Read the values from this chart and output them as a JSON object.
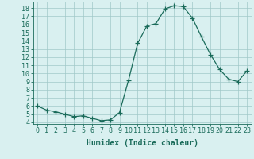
{
  "x": [
    0,
    1,
    2,
    3,
    4,
    5,
    6,
    7,
    8,
    9,
    10,
    11,
    12,
    13,
    14,
    15,
    16,
    17,
    18,
    19,
    20,
    21,
    22,
    23
  ],
  "y": [
    6.0,
    5.5,
    5.3,
    5.0,
    4.7,
    4.8,
    4.5,
    4.2,
    4.3,
    5.2,
    9.2,
    13.7,
    15.8,
    16.1,
    17.9,
    18.3,
    18.2,
    16.8,
    14.5,
    12.3,
    10.5,
    9.3,
    9.0,
    10.3
  ],
  "line_color": "#1a6b5a",
  "marker": "+",
  "marker_size": 4,
  "background_color": "#d9f0f0",
  "grid_color": "#a0c8c8",
  "xlabel": "Humidex (Indice chaleur)",
  "xlim": [
    -0.5,
    23.5
  ],
  "ylim": [
    3.8,
    18.8
  ],
  "yticks": [
    4,
    5,
    6,
    7,
    8,
    9,
    10,
    11,
    12,
    13,
    14,
    15,
    16,
    17,
    18
  ],
  "xticks": [
    0,
    1,
    2,
    3,
    4,
    5,
    6,
    7,
    8,
    9,
    10,
    11,
    12,
    13,
    14,
    15,
    16,
    17,
    18,
    19,
    20,
    21,
    22,
    23
  ],
  "tick_color": "#1a6b5a",
  "label_fontsize": 7,
  "tick_fontsize": 6,
  "font_family": "monospace"
}
